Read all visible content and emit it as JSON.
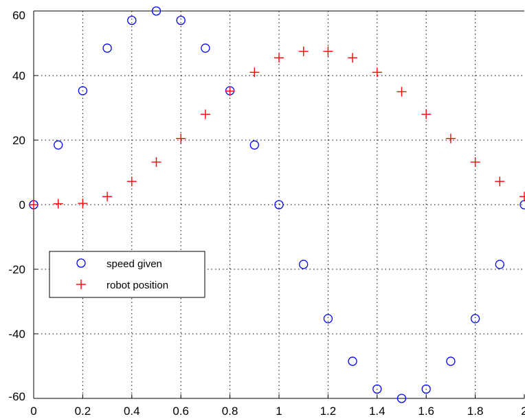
{
  "chart_data": {
    "type": "scatter",
    "title": "",
    "xlabel": "",
    "ylabel": "",
    "xlim": [
      0,
      2
    ],
    "ylim": [
      -60,
      60
    ],
    "xticks": [
      "0",
      "0.2",
      "0.4",
      "0.6",
      "0.8",
      "1",
      "1.2",
      "1.4",
      "1.6",
      "1.8",
      "2"
    ],
    "yticks": [
      "60",
      "40",
      "20",
      "0",
      "-20",
      "-40",
      "-60"
    ],
    "grid": true,
    "legend_position": "lower-left",
    "x": [
      0,
      0.1,
      0.2,
      0.3,
      0.4,
      0.5,
      0.6,
      0.7,
      0.8,
      0.9,
      1.0,
      1.1,
      1.2,
      1.3,
      1.4,
      1.5,
      1.6,
      1.7,
      1.8,
      1.9,
      2.0
    ],
    "series": [
      {
        "name": "speed given",
        "marker": "circle",
        "color": "#0000ff",
        "values": [
          0,
          18.5,
          35.3,
          48.5,
          57.1,
          60,
          57.1,
          48.5,
          35.3,
          18.5,
          0,
          -18.5,
          -35.3,
          -48.5,
          -57.1,
          -60,
          -57.1,
          -48.5,
          -35.3,
          -18.5,
          0
        ]
      },
      {
        "name": "robot position",
        "marker": "plus",
        "color": "#ff0000",
        "values": [
          0,
          0.3,
          0.4,
          2.5,
          7.2,
          13.2,
          20.5,
          28,
          35.2,
          41,
          45.5,
          47.5,
          47.5,
          45.5,
          41,
          35,
          28,
          20.5,
          13.2,
          7.2,
          2.5
        ]
      }
    ]
  }
}
